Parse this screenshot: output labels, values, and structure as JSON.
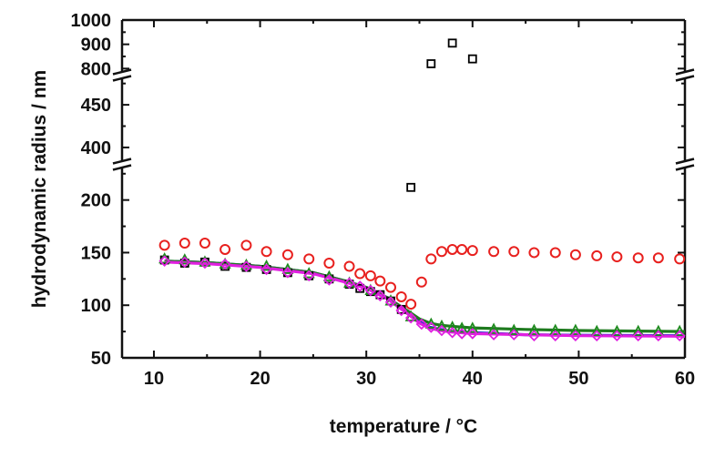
{
  "chart_data": {
    "type": "scatter",
    "title": "",
    "xlabel": "temperature / °C",
    "ylabel": "hydrodynamic radius / nm",
    "xlim": [
      7,
      60
    ],
    "x_ticks": [
      "10",
      "20",
      "30",
      "40",
      "50",
      "60"
    ],
    "y_broken_axis": true,
    "y_segments": [
      {
        "range": [
          50,
          230
        ],
        "ticks": [
          "50",
          "100",
          "150",
          "200"
        ]
      },
      {
        "range": [
          385,
          480
        ],
        "ticks": [
          "400",
          "450"
        ]
      },
      {
        "range": [
          790,
          1000
        ],
        "ticks": [
          "800",
          "900",
          "1000"
        ]
      }
    ],
    "series": [
      {
        "name": "squares",
        "marker": "square",
        "color": "#000000",
        "points": [
          [
            11,
            143
          ],
          [
            12.9,
            140
          ],
          [
            14.8,
            141
          ],
          [
            16.7,
            137
          ],
          [
            18.7,
            136
          ],
          [
            20.6,
            134
          ],
          [
            22.6,
            131
          ],
          [
            24.6,
            128
          ],
          [
            26.5,
            125
          ],
          [
            28.4,
            120
          ],
          [
            29.4,
            116
          ],
          [
            30.4,
            113
          ],
          [
            31.3,
            110
          ],
          [
            32.3,
            104
          ],
          [
            33.3,
            96
          ],
          [
            34.2,
            212
          ],
          [
            36.1,
            820
          ],
          [
            38.1,
            905
          ],
          [
            40,
            840
          ]
        ]
      },
      {
        "name": "circles",
        "marker": "circle",
        "color": "#e8201e",
        "points": [
          [
            11,
            157
          ],
          [
            12.9,
            159
          ],
          [
            14.8,
            159
          ],
          [
            16.7,
            153
          ],
          [
            18.7,
            157
          ],
          [
            20.6,
            151
          ],
          [
            22.6,
            148
          ],
          [
            24.6,
            144
          ],
          [
            26.5,
            140
          ],
          [
            28.4,
            137
          ],
          [
            29.4,
            130
          ],
          [
            30.4,
            128
          ],
          [
            31.3,
            123
          ],
          [
            32.3,
            117
          ],
          [
            33.3,
            108
          ],
          [
            34.2,
            101
          ],
          [
            35.2,
            122
          ],
          [
            36.1,
            144
          ],
          [
            37.1,
            151
          ],
          [
            38.1,
            153
          ],
          [
            39,
            153
          ],
          [
            40,
            152
          ],
          [
            42,
            151
          ],
          [
            43.9,
            151
          ],
          [
            45.8,
            150
          ],
          [
            47.8,
            150
          ],
          [
            49.7,
            148
          ],
          [
            51.7,
            147
          ],
          [
            53.6,
            146
          ],
          [
            55.6,
            145
          ],
          [
            57.5,
            145
          ],
          [
            59.5,
            144
          ]
        ]
      },
      {
        "name": "triangles",
        "marker": "triangle",
        "color": "#1e8a1e",
        "points": [
          [
            11,
            144
          ],
          [
            12.9,
            143
          ],
          [
            14.8,
            141
          ],
          [
            16.7,
            139
          ],
          [
            18.7,
            138
          ],
          [
            20.6,
            137
          ],
          [
            22.6,
            134
          ],
          [
            24.6,
            130
          ],
          [
            26.5,
            127
          ],
          [
            28.4,
            121
          ],
          [
            30.4,
            114
          ],
          [
            32.3,
            104
          ],
          [
            34.2,
            89
          ],
          [
            36.1,
            82
          ],
          [
            37.1,
            80
          ],
          [
            38.1,
            79
          ],
          [
            39,
            78
          ],
          [
            40,
            78
          ],
          [
            42,
            77
          ],
          [
            43.9,
            76
          ],
          [
            45.8,
            76
          ],
          [
            47.8,
            76
          ],
          [
            49.7,
            76
          ],
          [
            51.7,
            75
          ],
          [
            53.6,
            75
          ],
          [
            55.6,
            75
          ],
          [
            57.5,
            75
          ],
          [
            59.5,
            75
          ]
        ]
      },
      {
        "name": "diamonds",
        "marker": "diamond",
        "color": "#e020e0",
        "points": [
          [
            11,
            142
          ],
          [
            12.9,
            141
          ],
          [
            14.8,
            140
          ],
          [
            16.7,
            139
          ],
          [
            18.7,
            137
          ],
          [
            20.6,
            134
          ],
          [
            22.6,
            131
          ],
          [
            24.6,
            128
          ],
          [
            26.5,
            124
          ],
          [
            28.4,
            121
          ],
          [
            29.4,
            118
          ],
          [
            30.4,
            114
          ],
          [
            31.3,
            109
          ],
          [
            32.3,
            103
          ],
          [
            33.3,
            95
          ],
          [
            34.2,
            88
          ],
          [
            35.2,
            82
          ],
          [
            36.1,
            79
          ],
          [
            37.1,
            76
          ],
          [
            38.1,
            74
          ],
          [
            39,
            73
          ],
          [
            40,
            73
          ],
          [
            42,
            72
          ],
          [
            43.9,
            72
          ],
          [
            45.8,
            71
          ],
          [
            47.8,
            71
          ],
          [
            49.7,
            71
          ],
          [
            51.7,
            71
          ],
          [
            53.6,
            71
          ],
          [
            55.6,
            71
          ],
          [
            57.5,
            71
          ],
          [
            59.5,
            71
          ]
        ]
      }
    ],
    "fit_lines": [
      {
        "name": "blue fit",
        "color": "#1d22c9",
        "points": [
          [
            11,
            142
          ],
          [
            15,
            140.5
          ],
          [
            20,
            137
          ],
          [
            25,
            131
          ],
          [
            28,
            123
          ],
          [
            30,
            117
          ],
          [
            32,
            107
          ],
          [
            34,
            92
          ],
          [
            35,
            84
          ],
          [
            36,
            79
          ],
          [
            37,
            77
          ],
          [
            38,
            75
          ],
          [
            40,
            74
          ],
          [
            45,
            72
          ],
          [
            50,
            71.5
          ],
          [
            60,
            71
          ]
        ]
      },
      {
        "name": "green fit",
        "color": "#1e7a1e",
        "points": [
          [
            11,
            142
          ],
          [
            15,
            140.5
          ],
          [
            20,
            137
          ],
          [
            25,
            131
          ],
          [
            28,
            123
          ],
          [
            30,
            117
          ],
          [
            32,
            107
          ],
          [
            34,
            94
          ],
          [
            35,
            87
          ],
          [
            36,
            83
          ],
          [
            37,
            81
          ],
          [
            38,
            80
          ],
          [
            40,
            78.5
          ],
          [
            45,
            77
          ],
          [
            50,
            76
          ],
          [
            60,
            75
          ]
        ]
      },
      {
        "name": "magenta fit",
        "color": "#e020e0",
        "points": [
          [
            11,
            141
          ],
          [
            15,
            139.5
          ],
          [
            20,
            136
          ],
          [
            25,
            130
          ],
          [
            28,
            122
          ],
          [
            30,
            116
          ],
          [
            32,
            106
          ],
          [
            34,
            91
          ],
          [
            35,
            83
          ],
          [
            36,
            78
          ],
          [
            37,
            76
          ],
          [
            38,
            74.5
          ],
          [
            40,
            73
          ],
          [
            45,
            72
          ],
          [
            50,
            71
          ],
          [
            60,
            70.5
          ]
        ]
      }
    ]
  }
}
